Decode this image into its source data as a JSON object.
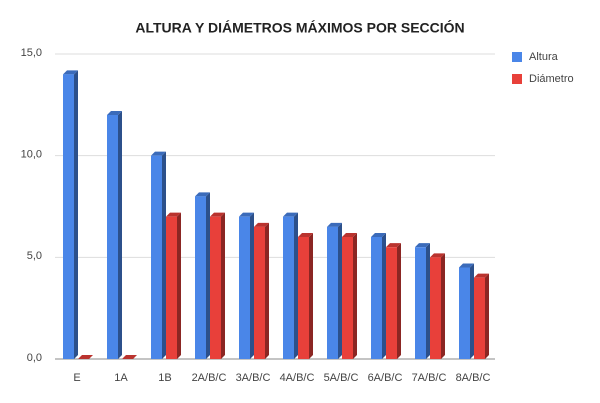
{
  "chart_data": {
    "type": "bar",
    "title": "ALTURA Y DIÁMETROS MÁXIMOS POR SECCIÓN",
    "categories": [
      "E",
      "1A",
      "1B",
      "2A/B/C",
      "3A/B/C",
      "4A/B/C",
      "5A/B/C",
      "6A/B/C",
      "7A/B/C",
      "8A/B/C"
    ],
    "series": [
      {
        "name": "Altura",
        "color": "#4a86e8",
        "values": [
          14,
          12,
          10,
          8,
          7,
          7,
          6.5,
          6,
          5.5,
          4.5
        ]
      },
      {
        "name": "Diámetro",
        "color": "#e8403a",
        "values": [
          0,
          0,
          7,
          7,
          6.5,
          6,
          6,
          5.5,
          5,
          4
        ]
      }
    ],
    "ylim": [
      0,
      15
    ],
    "yticks": [
      {
        "value": 0,
        "label": "0,0"
      },
      {
        "value": 5,
        "label": "5,0"
      },
      {
        "value": 10,
        "label": "10,0"
      },
      {
        "value": 15,
        "label": "15,0"
      }
    ],
    "grid": true,
    "legend": "right"
  }
}
